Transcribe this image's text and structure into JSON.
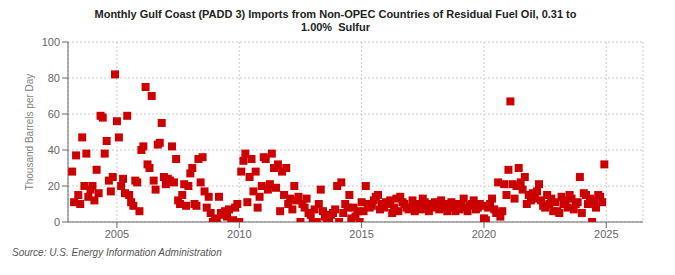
{
  "chart_data": {
    "type": "scatter",
    "title": "Monthly Gulf Coast (PADD 3) Imports from Non-OPEC Countries of Residual Fuel Oil, 0.31 to\n1.00%  Sulfur",
    "y_label": "Thousand Barrels per Day",
    "annotation": "Source: U.S. Energy Information Administration",
    "color": "#cc0000",
    "marker": "square",
    "grid": true,
    "xlim": [
      2003.0,
      2026.5
    ],
    "ylim": [
      0,
      100
    ],
    "xticks": [
      2005,
      2010,
      2015,
      2020,
      2025
    ],
    "yticks": [
      0,
      20,
      40,
      60,
      80,
      100
    ],
    "x": [
      2003.17,
      2003.25,
      2003.33,
      2003.42,
      2003.5,
      2003.58,
      2003.67,
      2003.75,
      2003.83,
      2003.92,
      2004.0,
      2004.08,
      2004.17,
      2004.25,
      2004.33,
      2004.42,
      2004.5,
      2004.58,
      2004.67,
      2004.75,
      2004.83,
      2004.92,
      2005.0,
      2005.08,
      2005.17,
      2005.25,
      2005.33,
      2005.42,
      2005.5,
      2005.58,
      2005.67,
      2005.75,
      2005.83,
      2005.92,
      2006.0,
      2006.08,
      2006.17,
      2006.25,
      2006.33,
      2006.42,
      2006.5,
      2006.58,
      2006.67,
      2006.75,
      2006.83,
      2006.92,
      2007.0,
      2007.08,
      2007.17,
      2007.25,
      2007.33,
      2007.42,
      2007.5,
      2007.58,
      2007.67,
      2007.75,
      2007.83,
      2007.92,
      2008.0,
      2008.08,
      2008.17,
      2008.25,
      2008.33,
      2008.42,
      2008.5,
      2008.58,
      2008.67,
      2008.75,
      2008.83,
      2008.92,
      2009.0,
      2009.08,
      2009.17,
      2009.25,
      2009.33,
      2009.42,
      2009.5,
      2009.58,
      2009.67,
      2009.75,
      2009.83,
      2009.92,
      2010.0,
      2010.08,
      2010.17,
      2010.25,
      2010.33,
      2010.42,
      2010.5,
      2010.58,
      2010.67,
      2010.75,
      2010.83,
      2010.92,
      2011.0,
      2011.08,
      2011.17,
      2011.25,
      2011.33,
      2011.42,
      2011.5,
      2011.58,
      2011.67,
      2011.75,
      2011.83,
      2011.92,
      2012.0,
      2012.08,
      2012.17,
      2012.25,
      2012.33,
      2012.42,
      2012.5,
      2012.58,
      2012.67,
      2012.75,
      2012.83,
      2012.92,
      2013.0,
      2013.08,
      2013.17,
      2013.25,
      2013.33,
      2013.42,
      2013.5,
      2013.58,
      2013.67,
      2013.75,
      2013.83,
      2013.92,
      2014.0,
      2014.08,
      2014.17,
      2014.25,
      2014.33,
      2014.42,
      2014.5,
      2014.58,
      2014.67,
      2014.75,
      2014.83,
      2014.92,
      2015.0,
      2015.08,
      2015.17,
      2015.25,
      2015.33,
      2015.42,
      2015.5,
      2015.58,
      2015.67,
      2015.75,
      2015.83,
      2015.92,
      2016.0,
      2016.08,
      2016.17,
      2016.25,
      2016.33,
      2016.42,
      2016.5,
      2016.58,
      2016.67,
      2016.75,
      2016.83,
      2016.92,
      2017.0,
      2017.08,
      2017.17,
      2017.25,
      2017.33,
      2017.42,
      2017.5,
      2017.58,
      2017.67,
      2017.75,
      2017.83,
      2017.92,
      2018.0,
      2018.08,
      2018.17,
      2018.25,
      2018.33,
      2018.42,
      2018.5,
      2018.58,
      2018.67,
      2018.75,
      2018.83,
      2018.92,
      2019.0,
      2019.08,
      2019.17,
      2019.25,
      2019.33,
      2019.42,
      2019.5,
      2019.58,
      2019.67,
      2019.75,
      2019.83,
      2019.92,
      2020.0,
      2020.08,
      2020.17,
      2020.25,
      2020.33,
      2020.42,
      2020.5,
      2020.58,
      2020.67,
      2020.75,
      2020.83,
      2020.92,
      2021.0,
      2021.08,
      2021.17,
      2021.25,
      2021.33,
      2021.42,
      2021.5,
      2021.58,
      2021.67,
      2021.75,
      2021.83,
      2021.92,
      2022.0,
      2022.08,
      2022.17,
      2022.25,
      2022.33,
      2022.42,
      2022.5,
      2022.58,
      2022.67,
      2022.75,
      2022.83,
      2022.92,
      2023.0,
      2023.08,
      2023.17,
      2023.25,
      2023.33,
      2023.42,
      2023.5,
      2023.58,
      2023.67,
      2023.75,
      2023.83,
      2023.92,
      2024.0,
      2024.08,
      2024.17,
      2024.25,
      2024.33,
      2024.42,
      2024.5,
      2024.58,
      2024.67,
      2024.75,
      2024.83,
      2024.92
    ],
    "values": [
      28,
      11,
      37,
      15,
      10,
      47,
      20,
      38,
      14,
      18,
      20,
      12,
      29,
      16,
      59,
      58,
      38,
      45,
      23,
      17,
      25,
      82,
      56,
      47,
      20,
      24,
      16,
      59,
      15,
      11,
      9,
      23,
      22,
      6,
      40,
      42,
      75,
      32,
      30,
      70,
      23,
      18,
      43,
      44,
      55,
      25,
      21,
      24,
      23,
      42,
      22,
      35,
      12,
      10,
      15,
      21,
      9,
      20,
      27,
      30,
      10,
      9,
      35,
      22,
      36,
      17,
      8,
      14,
      5,
      0,
      1,
      2,
      14,
      5,
      4,
      6,
      3,
      7,
      0,
      1,
      8,
      10,
      0,
      28,
      34,
      38,
      11,
      25,
      35,
      17,
      28,
      8,
      14,
      20,
      36,
      35,
      18,
      21,
      38,
      30,
      19,
      32,
      6,
      28,
      15,
      30,
      10,
      13,
      7,
      20,
      12,
      14,
      0,
      10,
      8,
      13,
      5,
      4,
      0,
      7,
      0,
      10,
      18,
      6,
      3,
      0,
      0,
      4,
      5,
      7,
      20,
      0,
      22,
      5,
      10,
      8,
      15,
      2,
      8,
      3,
      6,
      0,
      11,
      6,
      20,
      10,
      8,
      9,
      12,
      14,
      15,
      7,
      10,
      8,
      11,
      10,
      12,
      5,
      8,
      13,
      6,
      14,
      11,
      10,
      8,
      7,
      8,
      12,
      6,
      10,
      9,
      7,
      13,
      11,
      8,
      6,
      10,
      8,
      11,
      9,
      7,
      12,
      8,
      10,
      6,
      9,
      11,
      8,
      6,
      10,
      7,
      10,
      13,
      8,
      6,
      9,
      10,
      12,
      7,
      8,
      10,
      9,
      2,
      1,
      8,
      10,
      13,
      7,
      5,
      22,
      3,
      6,
      21,
      15,
      29,
      67,
      21,
      13,
      20,
      30,
      22,
      18,
      25,
      10,
      15,
      12,
      16,
      13,
      17,
      21,
      12,
      9,
      8,
      15,
      10,
      13,
      6,
      11,
      6,
      5,
      14,
      10,
      12,
      8,
      15,
      13,
      7,
      10,
      11,
      25,
      5,
      16,
      15,
      10,
      13,
      0,
      12,
      8,
      15,
      14,
      11,
      32
    ]
  }
}
